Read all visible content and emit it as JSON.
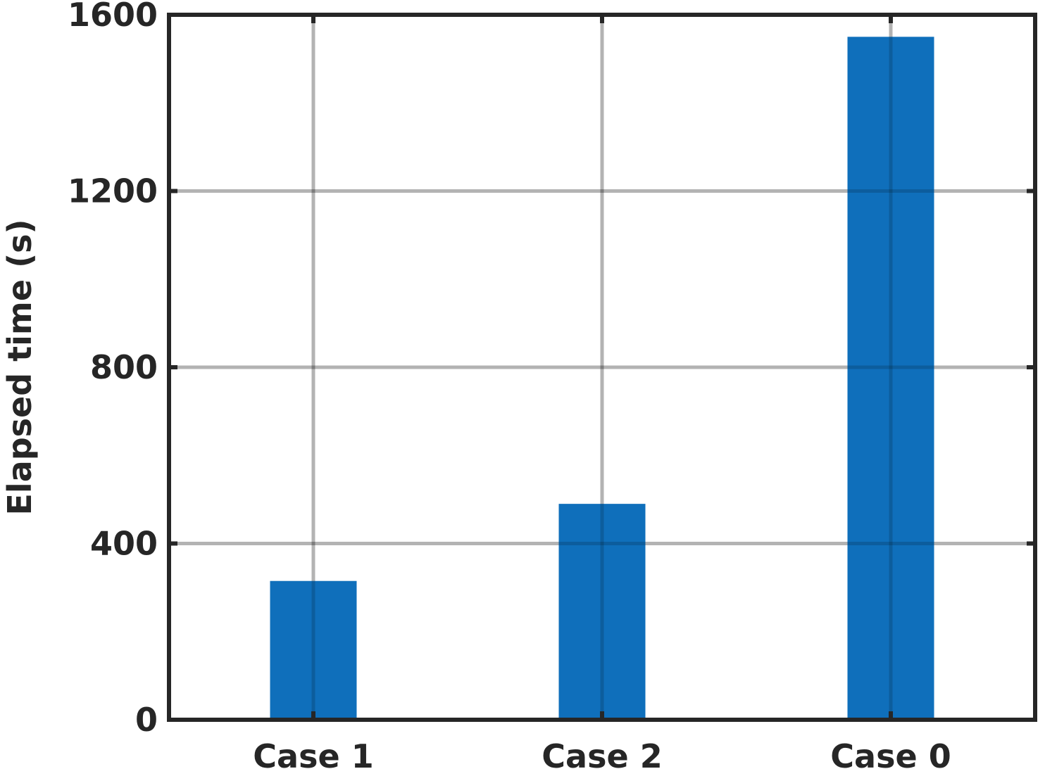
{
  "chart_data": {
    "type": "bar",
    "categories": [
      "Case 1",
      "Case 2",
      "Case 0"
    ],
    "values": [
      315,
      490,
      1550
    ],
    "title": "",
    "xlabel": "",
    "ylabel": "Elapsed time (s)",
    "ylim": [
      0,
      1600
    ],
    "yticks": [
      0,
      400,
      800,
      1200,
      1600
    ],
    "ytick_labels": [
      "0",
      "400",
      "800",
      "1200",
      "1600"
    ],
    "grid": true,
    "colors": {
      "bar": "#0f6fbb",
      "axis": "#262626",
      "grid": "#cccccc"
    }
  }
}
